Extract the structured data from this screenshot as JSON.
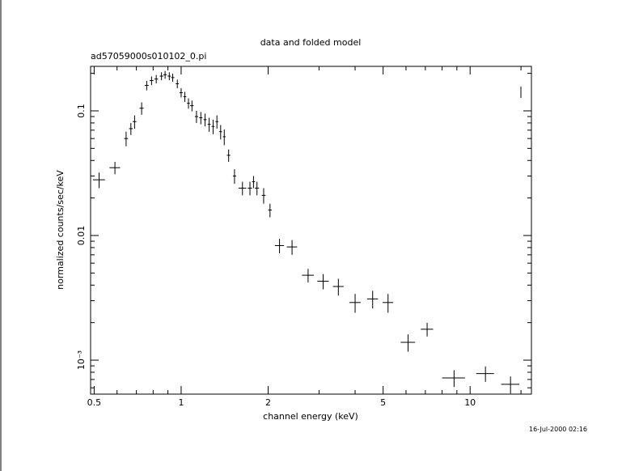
{
  "chart_data": {
    "type": "errorbar",
    "title": "data and folded model",
    "subtitle": "ad57059000s010102_0.pi",
    "x_label": "channel energy (keV)",
    "y_label": "normalized counts/sec/keV",
    "timestamp": "16-Jul-2000 02:16",
    "xscale": "log",
    "yscale": "log",
    "color": "#000000",
    "xlim": [
      0.486,
      16.3
    ],
    "ylim": [
      0.000534,
      0.2275
    ],
    "xticks": [
      0.5,
      1,
      2,
      5,
      10
    ],
    "yticks": [
      {
        "value": 0.1,
        "label": "0.1"
      },
      {
        "value": 0.01,
        "label": "0.01"
      },
      {
        "value": 0.001,
        "label": "10⁻³"
      }
    ],
    "xminorticks": [
      0.6,
      0.7,
      0.8,
      0.9,
      3,
      4,
      6,
      7,
      8,
      9,
      15
    ],
    "yminorticks": [
      0.2,
      0.09,
      0.08,
      0.07,
      0.06,
      0.05,
      0.04,
      0.03,
      0.02,
      0.009,
      0.008,
      0.007,
      0.006,
      0.005,
      0.004,
      0.003,
      0.002,
      0.0009,
      0.0008,
      0.0007,
      0.0006
    ],
    "series": [
      {
        "x": [
          0.52,
          0.59,
          0.645,
          0.67,
          0.69,
          0.73,
          0.76,
          0.79,
          0.82,
          0.855,
          0.88,
          0.91,
          0.935,
          0.97,
          1.0,
          1.03,
          1.06,
          1.09,
          1.13,
          1.17,
          1.21,
          1.25,
          1.29,
          1.33,
          1.37,
          1.41,
          1.46,
          1.53,
          1.63,
          1.73,
          1.78,
          1.83,
          1.93,
          2.03,
          2.19,
          2.42,
          2.75,
          3.1,
          3.5,
          4.0,
          4.6,
          5.2,
          6.1,
          7.1,
          8.8,
          11.3,
          13.8
        ],
        "xerr": [
          0.025,
          0.025,
          0.01,
          0.01,
          0.01,
          0.012,
          0.012,
          0.012,
          0.012,
          0.012,
          0.012,
          0.012,
          0.012,
          0.012,
          0.012,
          0.012,
          0.012,
          0.015,
          0.015,
          0.015,
          0.015,
          0.015,
          0.015,
          0.015,
          0.015,
          0.015,
          0.02,
          0.02,
          0.05,
          0.03,
          0.02,
          0.03,
          0.03,
          0.03,
          0.08,
          0.1,
          0.13,
          0.14,
          0.15,
          0.18,
          0.2,
          0.22,
          0.35,
          0.35,
          0.8,
          0.8,
          1.0
        ],
        "y": [
          0.028,
          0.035,
          0.06,
          0.072,
          0.082,
          0.105,
          0.16,
          0.175,
          0.18,
          0.19,
          0.195,
          0.19,
          0.185,
          0.165,
          0.14,
          0.13,
          0.115,
          0.11,
          0.09,
          0.088,
          0.085,
          0.078,
          0.075,
          0.082,
          0.068,
          0.062,
          0.044,
          0.03,
          0.024,
          0.024,
          0.027,
          0.024,
          0.021,
          0.016,
          0.0083,
          0.0081,
          0.0048,
          0.0043,
          0.0039,
          0.0029,
          0.0031,
          0.0029,
          0.00139,
          0.00177,
          0.00072,
          0.00078,
          0.00064
        ],
        "yerr": [
          0.004,
          0.004,
          0.008,
          0.008,
          0.01,
          0.012,
          0.014,
          0.014,
          0.014,
          0.014,
          0.014,
          0.014,
          0.014,
          0.013,
          0.012,
          0.012,
          0.011,
          0.011,
          0.01,
          0.01,
          0.01,
          0.01,
          0.01,
          0.01,
          0.009,
          0.009,
          0.005,
          0.004,
          0.003,
          0.003,
          0.003,
          0.003,
          0.003,
          0.002,
          0.0011,
          0.0011,
          0.0006,
          0.0006,
          0.0006,
          0.0005,
          0.0005,
          0.0005,
          0.00022,
          0.00022,
          0.00011,
          0.00011,
          0.0001
        ]
      }
    ]
  }
}
